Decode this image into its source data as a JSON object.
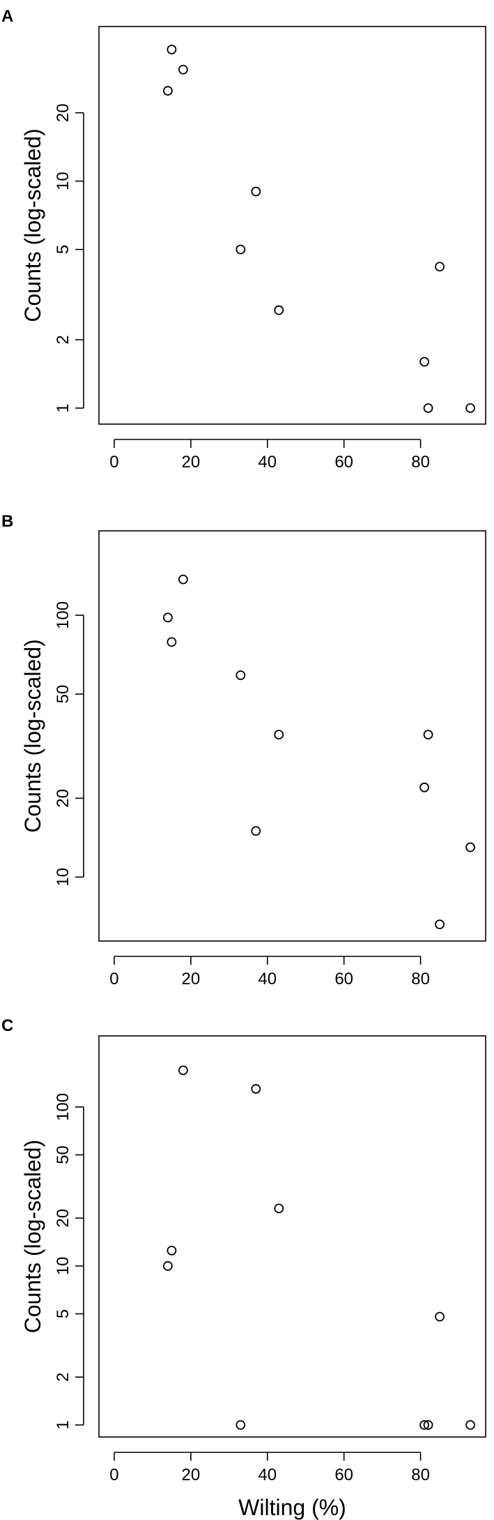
{
  "chart_data": [
    {
      "type": "scatter",
      "panel_label": "A",
      "xlabel": "",
      "ylabel": "Counts (log-scaled)",
      "y_scale": "log",
      "xlim": [
        -4,
        97
      ],
      "ylim": [
        0.85,
        48
      ],
      "x_ticks": [
        0,
        20,
        40,
        60,
        80
      ],
      "x_tick_labels": [
        "0",
        "20",
        "40",
        "60",
        "80"
      ],
      "y_ticks": [
        1,
        2,
        5,
        10,
        20
      ],
      "y_tick_labels": [
        "1",
        "2",
        "5",
        "10",
        "20"
      ],
      "grid": false,
      "x": [
        15,
        18,
        14,
        37,
        33,
        43,
        85,
        81,
        82,
        93
      ],
      "y": [
        38,
        31,
        25,
        9,
        5,
        2.7,
        4.2,
        1.6,
        1,
        1
      ]
    },
    {
      "type": "scatter",
      "panel_label": "B",
      "xlabel": "",
      "ylabel": "Counts (log-scaled)",
      "y_scale": "log",
      "xlim": [
        -4,
        97
      ],
      "ylim": [
        5.7,
        210
      ],
      "x_ticks": [
        0,
        20,
        40,
        60,
        80
      ],
      "x_tick_labels": [
        "0",
        "20",
        "40",
        "60",
        "80"
      ],
      "y_ticks": [
        10,
        20,
        50,
        100
      ],
      "y_tick_labels": [
        "10",
        "20",
        "50",
        "100"
      ],
      "grid": false,
      "x": [
        18,
        14,
        15,
        33,
        43,
        82,
        81,
        37,
        93,
        85
      ],
      "y": [
        137,
        98,
        79,
        59,
        35,
        35,
        22,
        15,
        13,
        6.6
      ]
    },
    {
      "type": "scatter",
      "panel_label": "C",
      "xlabel": "Wilting (%)",
      "ylabel": "Counts (log-scaled)",
      "y_scale": "log",
      "xlim": [
        -4,
        97
      ],
      "ylim": [
        0.84,
        280
      ],
      "x_ticks": [
        0,
        20,
        40,
        60,
        80
      ],
      "x_tick_labels": [
        "0",
        "20",
        "40",
        "60",
        "80"
      ],
      "y_ticks": [
        1,
        2,
        5,
        10,
        20,
        50,
        100
      ],
      "y_tick_labels": [
        "1",
        "2",
        "5",
        "10",
        "20",
        "50",
        "100"
      ],
      "grid": false,
      "x": [
        18,
        37,
        43,
        15,
        14,
        85,
        33,
        81,
        82,
        93
      ],
      "y": [
        170,
        130,
        23,
        12.5,
        10,
        4.8,
        1,
        1,
        1,
        1
      ]
    }
  ]
}
